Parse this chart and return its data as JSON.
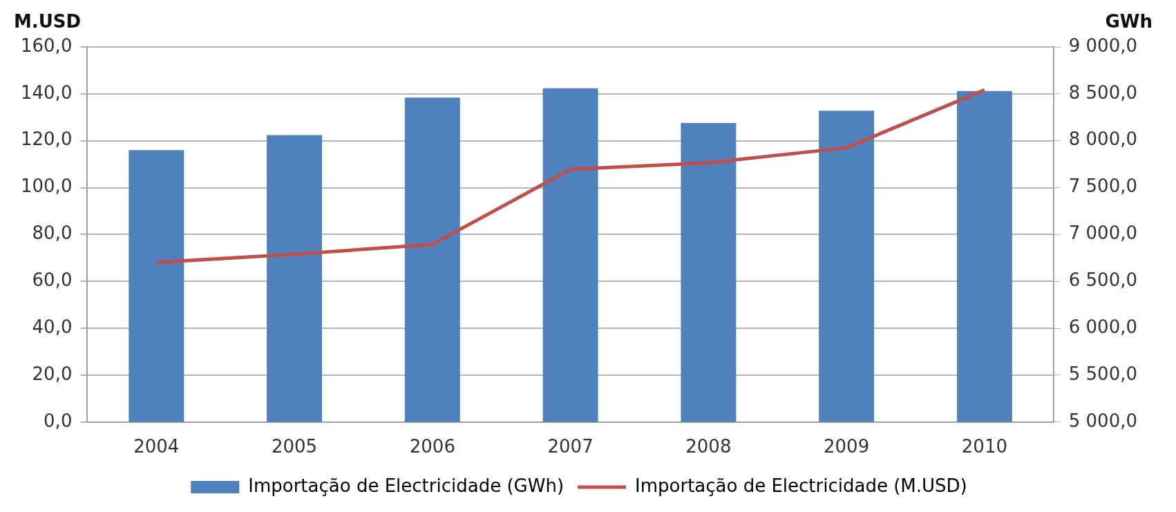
{
  "chart_data": {
    "type": "bar",
    "ylabel": "M.USD",
    "y2label": "GWh",
    "categories": [
      "2004",
      "2005",
      "2006",
      "2007",
      "2008",
      "2009",
      "2010"
    ],
    "series": [
      {
        "name": "Importação de Electricidade (GWh)",
        "axis": "y2",
        "color": "#4f81bd",
        "values": [
          7900,
          8060,
          8460,
          8560,
          8190,
          8320,
          8530
        ]
      },
      {
        "name": "Importação de Electricidade (M.USD)",
        "type": "line",
        "axis": "y",
        "color": "#c0504d",
        "values": [
          68.1,
          71.6,
          75.8,
          107.8,
          110.6,
          117.0,
          141.7
        ]
      }
    ],
    "ylim": [
      0,
      160
    ],
    "yticks": [
      {
        "value": 0,
        "label": "0,0"
      },
      {
        "value": 20,
        "label": "20,0"
      },
      {
        "value": 40,
        "label": "40,0"
      },
      {
        "value": 60,
        "label": "60,0"
      },
      {
        "value": 80,
        "label": "80,0"
      },
      {
        "value": 100,
        "label": "100,0"
      },
      {
        "value": 120,
        "label": "120,0"
      },
      {
        "value": 140,
        "label": "140,0"
      },
      {
        "value": 160,
        "label": "160,0"
      }
    ],
    "y2lim": [
      5000,
      9000
    ],
    "y2ticks": [
      {
        "value": 5000,
        "label": "5 000,0"
      },
      {
        "value": 5500,
        "label": "5 500,0"
      },
      {
        "value": 6000,
        "label": "6 000,0"
      },
      {
        "value": 6500,
        "label": "6 500,0"
      },
      {
        "value": 7000,
        "label": "7 000,0"
      },
      {
        "value": 7500,
        "label": "7 500,0"
      },
      {
        "value": 8000,
        "label": "8 000,0"
      },
      {
        "value": 8500,
        "label": "8 500,0"
      },
      {
        "value": 9000,
        "label": "9 000,0"
      }
    ],
    "grid": "y",
    "legend": "bottom",
    "marker": "none",
    "line_style": "solid"
  }
}
